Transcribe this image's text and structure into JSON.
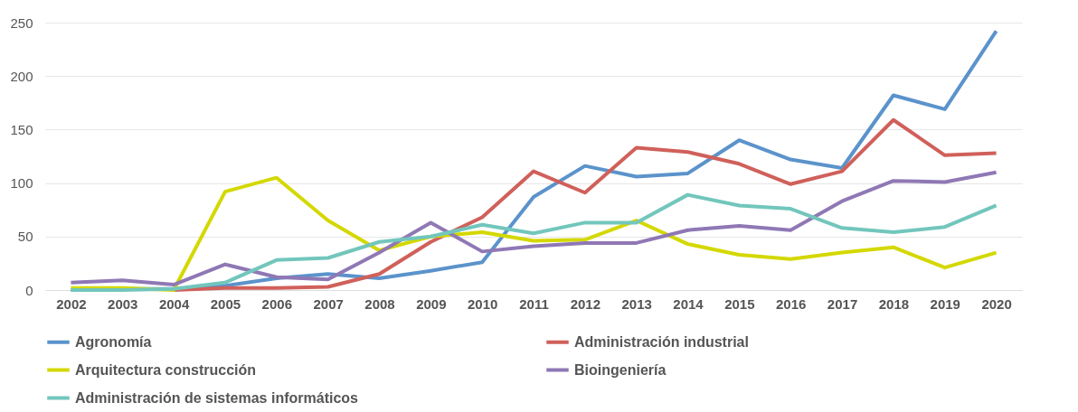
{
  "chart_data": {
    "type": "line",
    "categories": [
      "2002",
      "2003",
      "2004",
      "2005",
      "2006",
      "2007",
      "2008",
      "2009",
      "2010",
      "2011",
      "2012",
      "2013",
      "2014",
      "2015",
      "2016",
      "2017",
      "2018",
      "2019",
      "2020"
    ],
    "series": [
      {
        "name": "Agronomía",
        "color": "#5b93cb",
        "values": [
          0,
          1,
          1,
          4,
          11,
          15,
          11,
          18,
          26,
          87,
          116,
          106,
          109,
          140,
          122,
          114,
          182,
          169,
          242
        ]
      },
      {
        "name": "Administración industrial",
        "color": "#d0605a",
        "values": [
          null,
          null,
          0,
          2,
          2,
          3,
          15,
          45,
          68,
          111,
          91,
          133,
          129,
          118,
          99,
          111,
          159,
          126,
          128
        ]
      },
      {
        "name": "Arquitectura construcción",
        "color": "#d4d800",
        "values": [
          2,
          2,
          0,
          92,
          105,
          65,
          37,
          50,
          54,
          46,
          47,
          65,
          43,
          33,
          29,
          35,
          40,
          21,
          35
        ]
      },
      {
        "name": "Bioingeniería",
        "color": "#8f78b5",
        "values": [
          7,
          9,
          5,
          24,
          12,
          10,
          35,
          63,
          36,
          41,
          44,
          44,
          56,
          60,
          56,
          83,
          102,
          101,
          110
        ]
      },
      {
        "name": "Administración de sistemas informáticos",
        "color": "#72c6bc",
        "values": [
          0,
          0,
          1,
          7,
          28,
          30,
          45,
          50,
          61,
          53,
          63,
          63,
          89,
          79,
          76,
          58,
          54,
          59,
          79
        ]
      }
    ],
    "ylim": [
      0,
      250
    ],
    "yticks": [
      0,
      50,
      100,
      150,
      200,
      250
    ],
    "grid": "y",
    "legend": "bottom",
    "marker": "none",
    "line_style": "solid"
  }
}
